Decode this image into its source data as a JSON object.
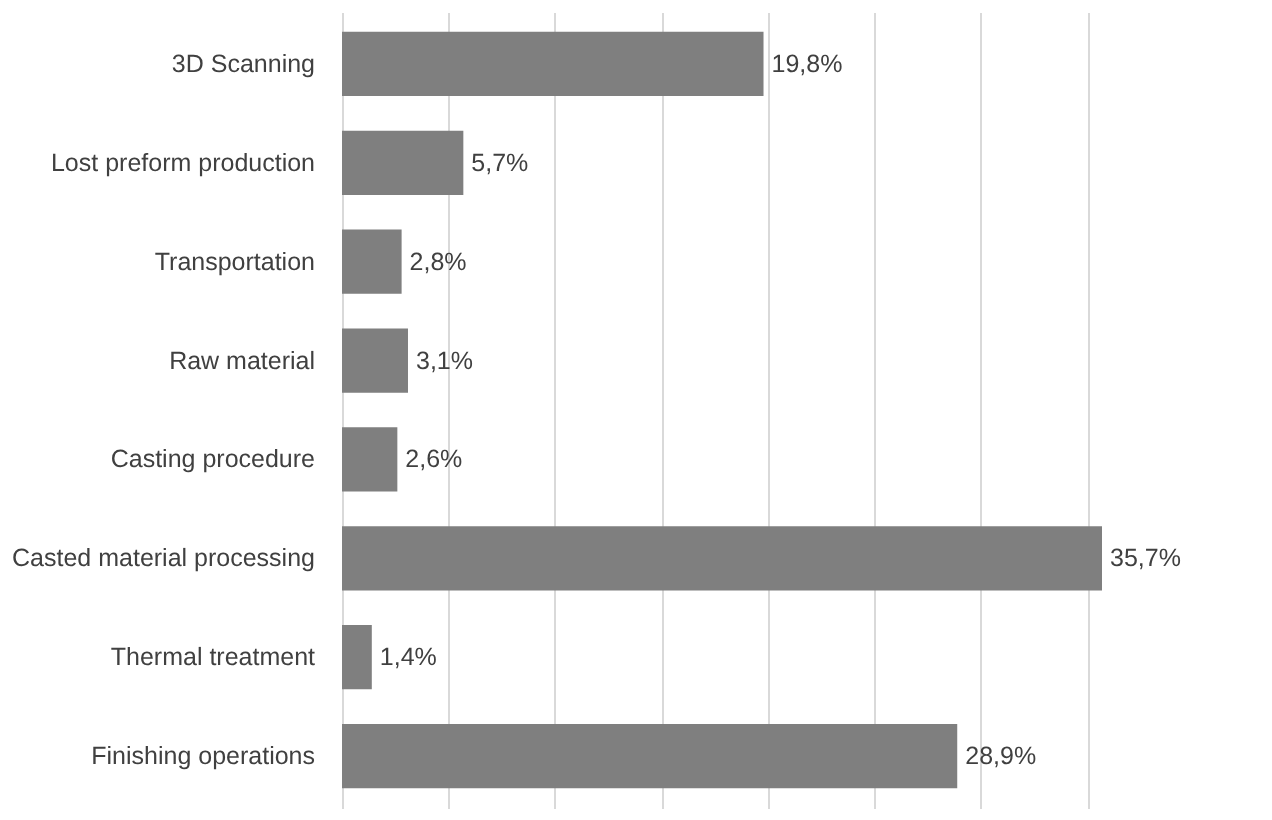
{
  "chart_data": {
    "type": "bar",
    "orientation": "horizontal",
    "categories": [
      "3D Scanning",
      "Lost preform production",
      "Transportation",
      "Raw material",
      "Casting procedure",
      "Casted material processing",
      "Thermal treatment",
      "Finishing operations"
    ],
    "values": [
      19.8,
      5.7,
      2.8,
      3.1,
      2.6,
      35.7,
      1.4,
      28.9
    ],
    "value_labels": [
      "19,8%",
      "5,7%",
      "2,8%",
      "3,1%",
      "2,6%",
      "35,7%",
      "1,4%",
      "28,9%"
    ],
    "color": "#7f7f7f",
    "tick_labels": "y",
    "grid": "x"
  }
}
